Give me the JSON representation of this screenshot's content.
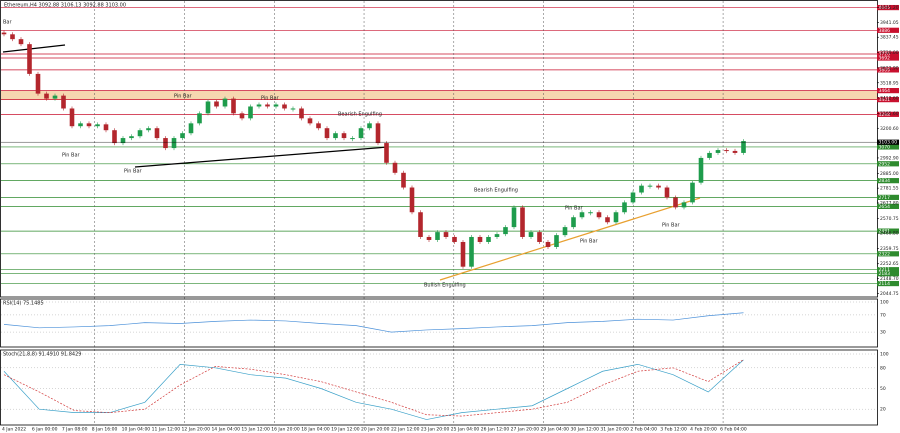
{
  "chart_data": {
    "type": "candlestick",
    "title": "Ethereum,H4  3092.88 3106.13 3092.88 3103.00",
    "open": 3870,
    "close": [
      3858,
      3824,
      3789,
      3581,
      3443,
      3408,
      3429,
      3339,
      3215,
      3235,
      3215,
      3228,
      3187,
      3097,
      3132,
      3145,
      3187,
      3201,
      3132,
      3062,
      3132,
      3166,
      3235,
      3305,
      3388,
      3353,
      3408,
      3305,
      3270,
      3353,
      3367,
      3353,
      3367,
      3339,
      3339,
      3270,
      3235,
      3201,
      3132,
      3166,
      3132,
      3132,
      3201,
      3235,
      3097,
      2959,
      2889,
      2786,
      2613,
      2440,
      2419,
      2474,
      2440,
      2405,
      2232,
      2440,
      2405,
      2440,
      2460,
      2509,
      2647,
      2440,
      2474,
      2405,
      2370,
      2453,
      2509,
      2578,
      2613,
      2613,
      2578,
      2543,
      2613,
      2682,
      2751,
      2799,
      2799,
      2786,
      2716,
      2647,
      2682,
      2820,
      2993,
      3028,
      3048,
      3042,
      3028,
      3111
    ],
    "up_color": "#1e9c4c",
    "down_color": "#b3262d",
    "ylim": [
      2020,
      4070
    ],
    "yticks": [
      {
        "value": 2044.75,
        "label": "2044.75"
      },
      {
        "value": 2148.7,
        "label": "2148.70"
      },
      {
        "value": 2252.65,
        "label": "2252.65"
      },
      {
        "value": 2359.75,
        "label": "2359.75"
      },
      {
        "value": 2466.8,
        "label": "2466.80"
      },
      {
        "value": 2570.75,
        "label": "2570.75"
      },
      {
        "value": 2677.8,
        "label": "2677.80"
      },
      {
        "value": 2781.55,
        "label": "2781.55"
      },
      {
        "value": 2885,
        "label": "2885.00"
      },
      {
        "value": 2992.9,
        "label": "2992.90"
      },
      {
        "value": 3096.85,
        "label": "3096.85"
      },
      {
        "value": 3200.6,
        "label": "3200.60"
      },
      {
        "value": 3305.6,
        "label": "3305.60"
      },
      {
        "value": 3412.6,
        "label": "3412.60"
      },
      {
        "value": 3518.95,
        "label": "3518.95"
      },
      {
        "value": 3622.9,
        "label": "3622.90"
      },
      {
        "value": 3730,
        "label": "3730.00"
      },
      {
        "value": 3837.45,
        "label": "3837.45"
      },
      {
        "value": 3941.05,
        "label": "3941.05"
      },
      {
        "value": 4045.2,
        "label": "4045.20"
      }
    ],
    "levels": [
      {
        "value": 4045,
        "color": "#c8102e"
      },
      {
        "value": 3886,
        "color": "#c8102e"
      },
      {
        "value": 3720,
        "color": "#c8102e"
      },
      {
        "value": 3692,
        "color": "#c8102e"
      },
      {
        "value": 3609,
        "color": "#c8102e"
      },
      {
        "value": 3464,
        "color": "#c8102e"
      },
      {
        "value": 3401,
        "color": "#c8102e"
      },
      {
        "value": 3298,
        "color": "#c8102e"
      },
      {
        "value": 3070,
        "color": "#2e8b2e"
      },
      {
        "value": 2952,
        "color": "#2e8b2e"
      },
      {
        "value": 2834,
        "color": "#2e8b2e"
      },
      {
        "value": 2717,
        "color": "#2e8b2e"
      },
      {
        "value": 2654,
        "color": "#2e8b2e"
      },
      {
        "value": 2481,
        "color": "#2e8b2e"
      },
      {
        "value": 2322,
        "color": "#2e8b2e"
      },
      {
        "value": 2211,
        "color": "#2e8b2e"
      },
      {
        "value": 2183,
        "color": "#2e8b2e"
      },
      {
        "value": 2114,
        "color": "#2e8b2e"
      }
    ],
    "zone": [
      3401,
      3464
    ],
    "zone_color": "#f6d7b0",
    "last_price": {
      "value": 3103,
      "label": "3103.00"
    },
    "annotations": [
      "Bar",
      "Pin Bar",
      "Pin Bar",
      "Pin Bar",
      "Pin Bar",
      "Bearish Engulfing",
      "Bearish Engulfing",
      "Pin Bar",
      "Pin Bar",
      "Pin Bar",
      "Bullish Engulfing"
    ],
    "time_labels": [
      "4 Jan 2022",
      "6 Jan 00:00",
      "7 Jan 08:00",
      "8 Jan 16:00",
      "10 Jan 04:00",
      "11 Jan 12:00",
      "12 Jan 20:00",
      "14 Jan 04:00",
      "15 Jan 12:00",
      "16 Jan 20:00",
      "18 Jan 04:00",
      "19 Jan 12:00",
      "20 Jan 20:00",
      "22 Jan 12:00",
      "23 Jan 20:00",
      "25 Jan 04:00",
      "26 Jan 12:00",
      "27 Jan 20:00",
      "29 Jan 04:00",
      "30 Jan 12:00",
      "31 Jan 20:00",
      "2 Feb 04:00",
      "3 Feb 12:00",
      "4 Feb 20:00",
      "6 Feb 04:00"
    ],
    "rsi": {
      "title": "RSI(14) 75.1485",
      "color": "#4a90d9",
      "ylim": [
        0,
        100
      ],
      "yticks": [
        30,
        70,
        100
      ],
      "values": [
        48,
        40,
        42,
        45,
        52,
        50,
        55,
        58,
        56,
        50,
        45,
        30,
        35,
        38,
        42,
        45,
        52,
        55,
        60,
        58,
        68,
        75
      ]
    },
    "stoch": {
      "title": "Stoch(21,8,8) 91.4910 91.8429",
      "ylim": [
        0,
        100
      ],
      "yticks": [
        20,
        50,
        80,
        100
      ],
      "series": [
        {
          "color": "#3aa0c8",
          "values": [
            75,
            20,
            15,
            15,
            30,
            85,
            80,
            70,
            65,
            50,
            30,
            20,
            5,
            15,
            20,
            25,
            50,
            75,
            85,
            70,
            45,
            91.5
          ]
        },
        {
          "color": "#d23a3a",
          "values": [
            70,
            45,
            18,
            15,
            20,
            55,
            82,
            78,
            70,
            60,
            45,
            30,
            12,
            10,
            15,
            20,
            30,
            55,
            75,
            80,
            60,
            91.8
          ]
        }
      ]
    }
  }
}
